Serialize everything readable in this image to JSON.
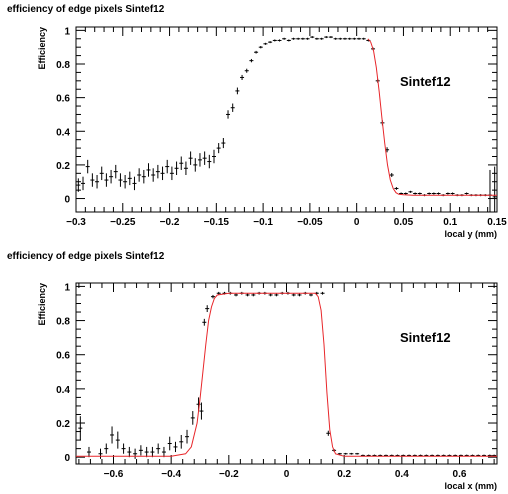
{
  "chart_data": [
    {
      "type": "scatter",
      "title": "efficiency of edge pixels Sintef12",
      "xlabel": "local y (mm)",
      "ylabel": "Efficiency",
      "annotation": "Sintef12",
      "xlim": [
        -0.3,
        0.15
      ],
      "ylim": [
        -0.08,
        1.02
      ],
      "xticks": [
        -0.3,
        -0.25,
        -0.2,
        -0.15,
        -0.1,
        -0.05,
        0,
        0.05,
        0.1,
        0.15
      ],
      "xtick_labels": [
        "−0.3",
        "−0.25",
        "−0.2",
        "−0.15",
        "−0.1",
        "−0.05",
        "0",
        "0.05",
        "0.1",
        "0.15"
      ],
      "yticks": [
        0,
        0.2,
        0.4,
        0.6,
        0.8,
        1
      ],
      "ytick_labels": [
        "0",
        "0.2",
        "0.4",
        "0.6",
        "0.8",
        "1"
      ],
      "series": [
        {
          "kind": "points",
          "color": "#000000",
          "x": [
            -0.2975,
            -0.2925,
            -0.2875,
            -0.2825,
            -0.2775,
            -0.2725,
            -0.2675,
            -0.2625,
            -0.2575,
            -0.2525,
            -0.2475,
            -0.2425,
            -0.2375,
            -0.2325,
            -0.2275,
            -0.2225,
            -0.2175,
            -0.2125,
            -0.2075,
            -0.2025,
            -0.1975,
            -0.1925,
            -0.1875,
            -0.1825,
            -0.1775,
            -0.1725,
            -0.1675,
            -0.1625,
            -0.1575,
            -0.1525,
            -0.1475,
            -0.1425,
            -0.1375,
            -0.1325,
            -0.1275,
            -0.1225,
            -0.1175,
            -0.1125,
            -0.1075,
            -0.1025,
            -0.0975,
            -0.0925,
            -0.0875,
            -0.0825,
            -0.0775,
            -0.0725,
            -0.0675,
            -0.0625,
            -0.0575,
            -0.0525,
            -0.0475,
            -0.0425,
            -0.0375,
            -0.0325,
            -0.0275,
            -0.0225,
            -0.0175,
            -0.0125,
            -0.0075,
            -0.0025,
            0.0025,
            0.0075,
            0.0125,
            0.0175,
            0.0225,
            0.0275,
            0.0325,
            0.0375,
            0.0425,
            0.0475,
            0.0525,
            0.0575,
            0.0625,
            0.0675,
            0.0725,
            0.0775,
            0.0825,
            0.0875,
            0.0925,
            0.0975,
            0.1025,
            0.1075,
            0.1125,
            0.1175,
            0.1225,
            0.1275,
            0.1325,
            0.1375,
            0.1425,
            0.1475
          ],
          "y": [
            0.08,
            0.09,
            0.19,
            0.11,
            0.1,
            0.15,
            0.11,
            0.13,
            0.16,
            0.11,
            0.1,
            0.12,
            0.09,
            0.14,
            0.13,
            0.17,
            0.14,
            0.16,
            0.15,
            0.19,
            0.15,
            0.18,
            0.21,
            0.18,
            0.24,
            0.2,
            0.23,
            0.24,
            0.22,
            0.25,
            0.3,
            0.33,
            0.5,
            0.54,
            0.64,
            0.72,
            0.76,
            0.82,
            0.87,
            0.9,
            0.92,
            0.93,
            0.94,
            0.94,
            0.95,
            0.94,
            0.95,
            0.95,
            0.95,
            0.95,
            0.96,
            0.95,
            0.95,
            0.96,
            0.96,
            0.95,
            0.95,
            0.95,
            0.95,
            0.95,
            0.95,
            0.95,
            0.94,
            0.89,
            0.7,
            0.45,
            0.29,
            0.14,
            0.06,
            0.03,
            0.03,
            0.04,
            0.03,
            0.03,
            0.02,
            0.03,
            0.03,
            0.03,
            0.02,
            0.03,
            0.03,
            0.02,
            0.02,
            0.03,
            0.02,
            0.02,
            0.02,
            0.02,
            0.02,
            0.01
          ],
          "yerr": [
            0.04,
            0.04,
            0.04,
            0.04,
            0.04,
            0.04,
            0.04,
            0.04,
            0.04,
            0.04,
            0.04,
            0.04,
            0.04,
            0.04,
            0.04,
            0.04,
            0.04,
            0.04,
            0.04,
            0.04,
            0.04,
            0.04,
            0.04,
            0.04,
            0.04,
            0.04,
            0.04,
            0.04,
            0.04,
            0.04,
            0.03,
            0.03,
            0.025,
            0.025,
            0.02,
            0.015,
            0.012,
            0.01,
            0.008,
            0.007,
            0.006,
            0.006,
            0.006,
            0.006,
            0.006,
            0.006,
            0.006,
            0.006,
            0.006,
            0.006,
            0.006,
            0.006,
            0.006,
            0.006,
            0.006,
            0.006,
            0.006,
            0.006,
            0.006,
            0.006,
            0.006,
            0.006,
            0.006,
            0.008,
            0.012,
            0.015,
            0.015,
            0.012,
            0.008,
            0.006,
            0.006,
            0.006,
            0.006,
            0.006,
            0.006,
            0.006,
            0.006,
            0.006,
            0.006,
            0.006,
            0.006,
            0.006,
            0.006,
            0.006,
            0.006,
            0.006,
            0.006,
            0.006,
            0.15,
            0.18
          ]
        },
        {
          "kind": "fit-line",
          "color": "#e8262a",
          "x": [
            0.012,
            0.015,
            0.018,
            0.021,
            0.024,
            0.027,
            0.03,
            0.033,
            0.036,
            0.039,
            0.042,
            0.045,
            0.05,
            0.06,
            0.08,
            0.1,
            0.12,
            0.14,
            0.15
          ],
          "y": [
            0.95,
            0.93,
            0.88,
            0.78,
            0.64,
            0.48,
            0.33,
            0.2,
            0.11,
            0.06,
            0.035,
            0.025,
            0.022,
            0.02,
            0.02,
            0.02,
            0.02,
            0.02,
            0.02
          ]
        }
      ]
    },
    {
      "type": "scatter",
      "title": "efficiency of edge pixels Sintef12",
      "xlabel": "local x (mm)",
      "ylabel": "Efficiency",
      "annotation": "Sintef12",
      "xlim": [
        -0.73,
        0.73
      ],
      "ylim": [
        -0.04,
        1.02
      ],
      "xticks": [
        -0.6,
        -0.4,
        -0.2,
        0,
        0.2,
        0.4,
        0.6
      ],
      "xtick_labels": [
        "−0.6",
        "−0.4",
        "−0.2",
        "0",
        "0.2",
        "0.4",
        "0.6"
      ],
      "yticks": [
        0,
        0.2,
        0.4,
        0.6,
        0.8,
        1
      ],
      "ytick_labels": [
        "0",
        "0.2",
        "0.4",
        "0.6",
        "0.8",
        "1"
      ],
      "series": [
        {
          "kind": "points",
          "color": "#000000",
          "x": [
            -0.715,
            -0.685,
            -0.645,
            -0.625,
            -0.605,
            -0.585,
            -0.565,
            -0.545,
            -0.525,
            -0.505,
            -0.485,
            -0.465,
            -0.445,
            -0.425,
            -0.405,
            -0.385,
            -0.365,
            -0.345,
            -0.325,
            -0.305,
            -0.295,
            -0.285,
            -0.275,
            -0.255,
            -0.235,
            -0.215,
            -0.195,
            -0.175,
            -0.155,
            -0.135,
            -0.115,
            -0.095,
            -0.075,
            -0.055,
            -0.035,
            -0.015,
            0.005,
            0.025,
            0.045,
            0.065,
            0.085,
            0.105,
            0.125,
            0.145,
            0.165,
            0.185,
            0.205,
            0.225,
            0.245,
            0.265,
            0.285,
            0.305,
            0.325,
            0.345,
            0.365,
            0.385,
            0.405,
            0.425,
            0.445,
            0.465,
            0.485,
            0.505,
            0.525,
            0.545,
            0.565,
            0.585,
            0.605,
            0.625,
            0.645,
            0.665,
            0.685,
            0.705,
            0.72
          ],
          "y": [
            0.17,
            0.03,
            0.02,
            0.05,
            0.13,
            0.1,
            0.05,
            0.03,
            0.02,
            0.04,
            0.03,
            0.03,
            0.05,
            0.03,
            0.08,
            0.06,
            0.09,
            0.12,
            0.23,
            0.31,
            0.27,
            0.79,
            0.87,
            0.94,
            0.96,
            0.96,
            0.96,
            0.95,
            0.96,
            0.95,
            0.95,
            0.96,
            0.96,
            0.95,
            0.95,
            0.96,
            0.96,
            0.95,
            0.95,
            0.96,
            0.95,
            0.96,
            0.96,
            0.14,
            0.04,
            0.02,
            0.02,
            0.02,
            0.02,
            0.01,
            0.01,
            0.01,
            0.01,
            0.01,
            0.01,
            0.01,
            0.01,
            0.01,
            0.01,
            0.01,
            0.01,
            0.01,
            0.01,
            0.01,
            0.01,
            0.01,
            0.01,
            0.01,
            0.01,
            0.01,
            0.01,
            0.01,
            0.01
          ],
          "yerr": [
            0.07,
            0.03,
            0.03,
            0.03,
            0.05,
            0.05,
            0.03,
            0.03,
            0.03,
            0.03,
            0.03,
            0.03,
            0.03,
            0.03,
            0.04,
            0.03,
            0.04,
            0.04,
            0.04,
            0.04,
            0.05,
            0.02,
            0.02,
            0.01,
            0.008,
            0.008,
            0.008,
            0.008,
            0.008,
            0.008,
            0.008,
            0.008,
            0.008,
            0.008,
            0.008,
            0.008,
            0.008,
            0.008,
            0.008,
            0.008,
            0.008,
            0.008,
            0.008,
            0.015,
            0.008,
            0.005,
            0.005,
            0.005,
            0.005,
            0.005,
            0.005,
            0.005,
            0.005,
            0.005,
            0.005,
            0.005,
            0.005,
            0.005,
            0.005,
            0.005,
            0.005,
            0.005,
            0.005,
            0.005,
            0.005,
            0.005,
            0.005,
            0.005,
            0.005,
            0.005,
            0.005,
            0.005,
            0.005
          ]
        },
        {
          "kind": "fit-line",
          "color": "#e8262a",
          "x": [
            -0.73,
            -0.4,
            -0.35,
            -0.33,
            -0.31,
            -0.3,
            -0.29,
            -0.28,
            -0.27,
            -0.26,
            -0.25,
            -0.24,
            -0.2,
            0.0,
            0.1,
            0.11,
            0.12,
            0.13,
            0.14,
            0.15,
            0.16,
            0.17,
            0.2,
            0.73
          ],
          "y": [
            0.005,
            0.005,
            0.02,
            0.06,
            0.2,
            0.34,
            0.5,
            0.66,
            0.8,
            0.88,
            0.93,
            0.95,
            0.96,
            0.96,
            0.96,
            0.94,
            0.86,
            0.66,
            0.38,
            0.16,
            0.06,
            0.02,
            0.005,
            0.005
          ]
        }
      ]
    }
  ]
}
